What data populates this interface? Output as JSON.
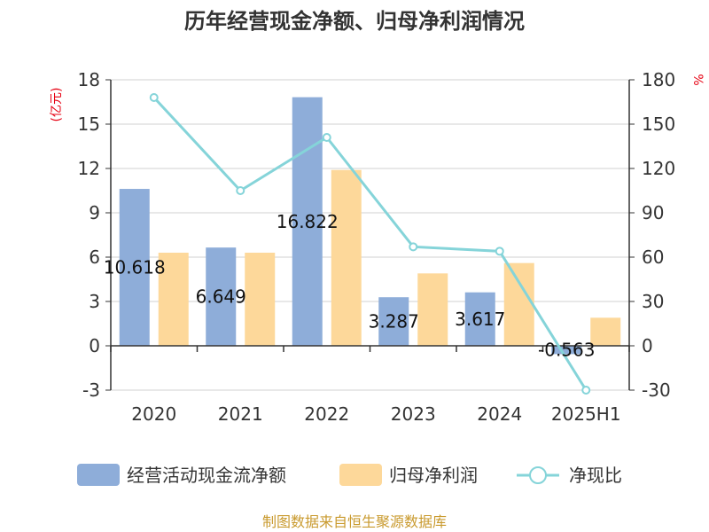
{
  "title": "历年经营现金净额、归母净利润情况",
  "source": "制图数据来自恒生聚源数据库",
  "colors": {
    "cash_flow": "#8eadd9",
    "net_profit": "#fdd89a",
    "ratio": "#85d4d9",
    "axis": "#333333",
    "grid": "#d0d0d0",
    "unit": "#e60012",
    "source": "#c99a2e"
  },
  "chart_data": {
    "type": "bar",
    "categories": [
      "2020",
      "2021",
      "2022",
      "2023",
      "2024",
      "2025H1"
    ],
    "left_axis": {
      "unit_label": "(亿元)",
      "ylim": [
        -3,
        18
      ],
      "ticks": [
        -3,
        0,
        3,
        6,
        9,
        12,
        15,
        18
      ]
    },
    "right_axis": {
      "unit_label": "%",
      "ylim": [
        -30,
        180
      ],
      "ticks": [
        -30,
        0,
        30,
        60,
        90,
        120,
        150,
        180
      ]
    },
    "series": [
      {
        "name": "经营活动现金流净额",
        "kind": "bar",
        "axis": "left",
        "values": [
          10.618,
          6.649,
          16.822,
          3.287,
          3.617,
          -0.563
        ],
        "labels": [
          "10.618",
          "6.649",
          "16.822",
          "3.287",
          "3.617",
          "-0.563"
        ]
      },
      {
        "name": "归母净利润",
        "kind": "bar",
        "axis": "left",
        "values": [
          6.3,
          6.3,
          11.9,
          4.9,
          5.6,
          1.9
        ]
      },
      {
        "name": "净现比",
        "kind": "line",
        "axis": "right",
        "values": [
          168,
          105,
          141,
          67,
          64,
          -30
        ]
      }
    ],
    "grid": true,
    "legend_position": "bottom"
  }
}
